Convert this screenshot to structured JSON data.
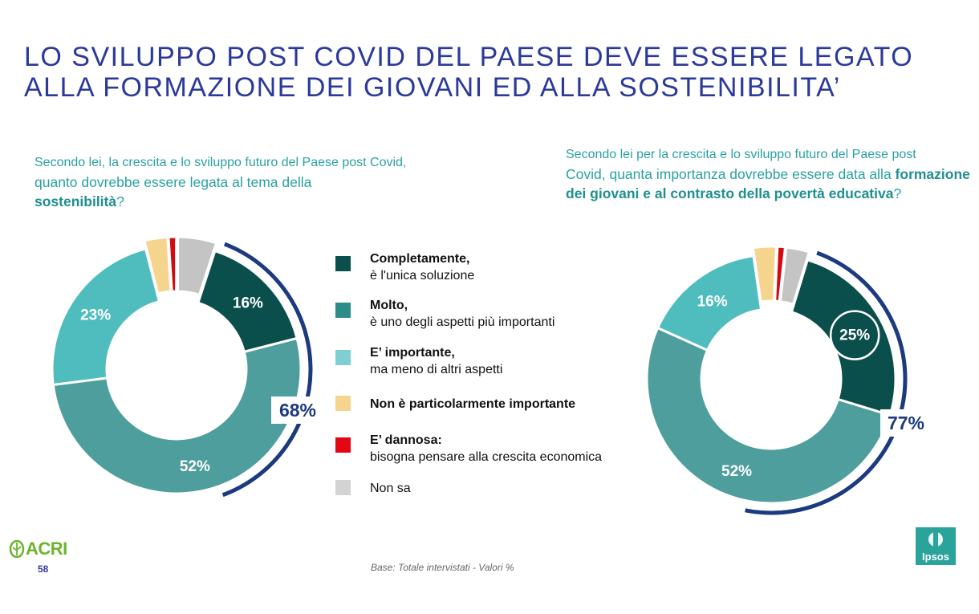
{
  "title": {
    "line1": "LO SVILUPPO POST COVID DEL PAESE DEVE ESSERE LEGATO",
    "line2": "ALLA FORMAZIONE DEI GIOVANI ED ALLA SOSTENIBILITA’"
  },
  "questions": {
    "left": {
      "line1": "Secondo lei, la crescita e lo sviluppo futuro del Paese post Covid,",
      "line2": "quanto dovrebbe essere legata al tema della",
      "bold": "sostenibilità",
      "end": "?"
    },
    "right": {
      "line1": "Secondo lei per la crescita e lo sviluppo futuro del Paese post",
      "line2": "Covid, quanta importanza dovrebbe essere data alla",
      "bold": "formazione dei giovani e al contrasto della povertà educativa",
      "end": "?"
    }
  },
  "legend": [
    {
      "line1": "Completamente,",
      "line2": "è l'unica soluzione",
      "color": "#0b4f4c"
    },
    {
      "line1": "Molto,",
      "line2": "è uno degli aspetti più importanti",
      "color": "#2e8c88"
    },
    {
      "line1": "E’ importante,",
      "line2": "ma meno di altri aspetti",
      "color": "#7fcfd2"
    },
    {
      "line1": "Non è particolarmente importante",
      "line2": "",
      "color": "#f5d58e"
    },
    {
      "line1": "E’ dannosa:",
      "line2": "bisogna pensare alla crescita economica",
      "color": "#e30613"
    },
    {
      "line1": "",
      "line2": "Non sa",
      "color": "#d3d3d3"
    }
  ],
  "chart_data": [
    {
      "type": "pie",
      "categories": [
        "Completamente",
        "Molto",
        "E’ importante",
        "Non è particolarmente importante",
        "E’ dannosa",
        "Non sa"
      ],
      "values": [
        16,
        52,
        23,
        3,
        1,
        5
      ],
      "labels": [
        "16%",
        "52%",
        "23%",
        "",
        "",
        ""
      ],
      "colors": [
        "#0b4f4c",
        "#4d9e9c",
        "#4fbcbd",
        "#f5d58e",
        "#d10a12",
        "#c4c4c4"
      ],
      "total_label": "68%"
    },
    {
      "type": "pie",
      "categories": [
        "Completamente",
        "Molto",
        "E’ importante",
        "Non è particolarmente importante",
        "E’ dannosa",
        "Non sa"
      ],
      "values": [
        25,
        52,
        16,
        3,
        1,
        3
      ],
      "labels": [
        "25%",
        "52%",
        "16%",
        "",
        "",
        ""
      ],
      "colors": [
        "#0b4f4c",
        "#4d9e9c",
        "#4fbcbd",
        "#f5d58e",
        "#d10a12",
        "#c4c4c4"
      ],
      "total_label": "77%"
    }
  ],
  "footer": {
    "page_number": "58",
    "base": "Base: Totale intervistati  - Valori %",
    "logo_left": "ACRI",
    "logo_right": "Ipsos"
  }
}
